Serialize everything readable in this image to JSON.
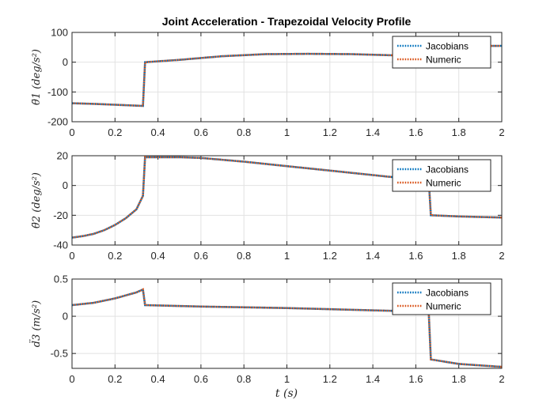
{
  "chart_data": {
    "type": "line",
    "title": "Joint Acceleration - Trapezoidal Velocity Profile",
    "xlabel": "t (s)",
    "xlim": [
      0,
      2
    ],
    "xticks": [
      "0",
      "0.2",
      "0.4",
      "0.6",
      "0.8",
      "1",
      "1.2",
      "1.4",
      "1.6",
      "1.8",
      "2"
    ],
    "grid": true,
    "legend_position": "top-right",
    "colors": {
      "Jacobians": "#0072BD",
      "Numeric": "#D95319"
    },
    "subplots": [
      {
        "ylabel": "θ̈1 (deg/s²)",
        "ylim": [
          -200,
          100
        ],
        "yticks": [
          "100",
          "0",
          "-100",
          "-200"
        ],
        "legend": [
          "Jacobians",
          "Numeric"
        ],
        "series": [
          {
            "name": "Jacobians",
            "x": [
              0,
              0.1,
              0.2,
              0.33,
              0.34,
              0.5,
              0.7,
              0.9,
              1.1,
              1.3,
              1.5,
              1.66,
              1.67,
              1.8,
              2.0
            ],
            "y": [
              -138,
              -140,
              -143,
              -147,
              0,
              8,
              20,
              27,
              28,
              27,
              23,
              18,
              53,
              54,
              55
            ]
          },
          {
            "name": "Numeric",
            "x": [
              0,
              0.1,
              0.2,
              0.33,
              0.34,
              0.5,
              0.7,
              0.9,
              1.1,
              1.3,
              1.5,
              1.66,
              1.67,
              1.8,
              2.0
            ],
            "y": [
              -138,
              -140,
              -143,
              -147,
              0,
              8,
              20,
              27,
              28,
              27,
              23,
              18,
              53,
              54,
              55
            ]
          }
        ]
      },
      {
        "ylabel": "θ̈2 (deg/s²)",
        "ylim": [
          -40,
          20
        ],
        "yticks": [
          "20",
          "0",
          "-20",
          "-40"
        ],
        "legend": [
          "Jacobians",
          "Numeric"
        ],
        "series": [
          {
            "name": "Jacobians",
            "x": [
              0,
              0.05,
              0.1,
              0.15,
              0.2,
              0.25,
              0.3,
              0.33,
              0.34,
              0.5,
              0.6,
              0.8,
              1.0,
              1.2,
              1.4,
              1.5,
              1.6,
              1.66,
              1.67,
              1.8,
              2.0
            ],
            "y": [
              -35,
              -34,
              -32.5,
              -30,
              -26.5,
              -22,
              -16,
              -7,
              19,
              19,
              18.5,
              16,
              13,
              10,
              7,
              5.5,
              4.5,
              4,
              -20,
              -20.8,
              -21.5
            ]
          },
          {
            "name": "Numeric",
            "x": [
              0,
              0.05,
              0.1,
              0.15,
              0.2,
              0.25,
              0.3,
              0.33,
              0.34,
              0.5,
              0.6,
              0.8,
              1.0,
              1.2,
              1.4,
              1.5,
              1.6,
              1.66,
              1.67,
              1.8,
              2.0
            ],
            "y": [
              -35,
              -34,
              -32.5,
              -30,
              -26.5,
              -22,
              -16,
              -7,
              19,
              19,
              18.5,
              16,
              13,
              10,
              7,
              5.5,
              4.5,
              4,
              -20,
              -20.8,
              -21.5
            ]
          }
        ]
      },
      {
        "ylabel": "d̈3 (m/s²)",
        "ylim": [
          -0.7,
          0.5
        ],
        "yticks": [
          "0.5",
          "0",
          "-0.5"
        ],
        "legend": [
          "Jacobians",
          "Numeric"
        ],
        "series": [
          {
            "name": "Jacobians",
            "x": [
              0,
              0.1,
              0.2,
              0.3,
              0.33,
              0.34,
              0.6,
              1.0,
              1.4,
              1.66,
              1.67,
              1.8,
              2.0
            ],
            "y": [
              0.15,
              0.18,
              0.24,
              0.32,
              0.36,
              0.15,
              0.13,
              0.11,
              0.08,
              0.06,
              -0.58,
              -0.64,
              -0.68
            ]
          },
          {
            "name": "Numeric",
            "x": [
              0,
              0.1,
              0.2,
              0.3,
              0.33,
              0.34,
              0.6,
              1.0,
              1.4,
              1.66,
              1.67,
              1.8,
              2.0
            ],
            "y": [
              0.15,
              0.18,
              0.24,
              0.32,
              0.36,
              0.15,
              0.13,
              0.11,
              0.08,
              0.06,
              -0.58,
              -0.64,
              -0.68
            ]
          }
        ]
      }
    ]
  }
}
